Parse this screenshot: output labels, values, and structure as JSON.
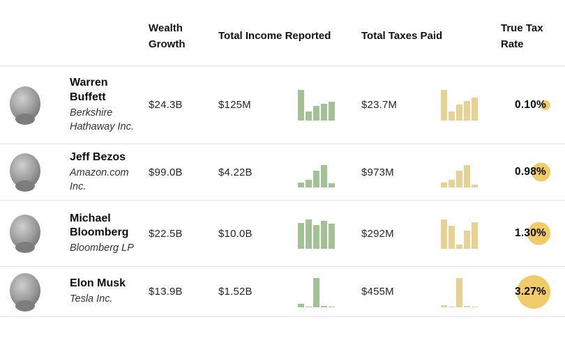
{
  "header": {
    "wealth_growth": "Wealth Growth",
    "total_income_reported": "Total Income Reported",
    "total_taxes_paid": "Total Taxes Paid",
    "true_tax_rate": "True Tax Rate"
  },
  "colors": {
    "income_bar": "#a3c293",
    "tax_bar": "#e5d294",
    "rate_circle": "#f0cb67",
    "divider": "#e3e3e3"
  },
  "rows": [
    {
      "name": "Warren Buffett",
      "company": "Berkshire Hathaway Inc.",
      "wealth_growth": "$24.3B",
      "income_reported": "$125M",
      "income_chart": [
        1.0,
        0.3,
        0.48,
        0.55,
        0.62
      ],
      "taxes_paid": "$23.7M",
      "taxes_chart": [
        1.0,
        0.3,
        0.52,
        0.64,
        0.74
      ],
      "true_tax_rate": "0.10%",
      "rate_circle": 14
    },
    {
      "name": "Jeff Bezos",
      "company": "Amazon.com Inc.",
      "wealth_growth": "$99.0B",
      "income_reported": "$4.22B",
      "income_chart": [
        0.16,
        0.25,
        0.55,
        0.72,
        0.14
      ],
      "taxes_paid": "$973M",
      "taxes_chart": [
        0.16,
        0.25,
        0.55,
        0.72,
        0.08
      ],
      "true_tax_rate": "0.98%",
      "rate_circle": 27
    },
    {
      "name": "Michael Bloomberg",
      "company": "Bloomberg LP",
      "wealth_growth": "$22.5B",
      "income_reported": "$10.0B",
      "income_chart": [
        0.85,
        0.95,
        0.78,
        0.9,
        0.82
      ],
      "taxes_paid": "$292M",
      "taxes_chart": [
        0.95,
        0.76,
        0.14,
        0.59,
        0.86
      ],
      "true_tax_rate": "1.30%",
      "rate_circle": 33
    },
    {
      "name": "Elon Musk",
      "company": "Tesla Inc.",
      "wealth_growth": "$13.9B",
      "income_reported": "$1.52B",
      "income_chart": [
        0.12,
        0.03,
        0.95,
        0.04,
        0.03
      ],
      "taxes_paid": "$455M",
      "taxes_chart": [
        0.06,
        0.03,
        0.95,
        0.04,
        0.02
      ],
      "true_tax_rate": "3.27%",
      "rate_circle": 48
    }
  ],
  "chart_data": {
    "type": "table",
    "columns": [
      "Name",
      "Company",
      "Wealth Growth",
      "Total Income Reported",
      "Income mini bar chart (relative)",
      "Total Taxes Paid",
      "Taxes mini bar chart (relative)",
      "True Tax Rate"
    ],
    "rows": [
      [
        "Warren Buffett",
        "Berkshire Hathaway Inc.",
        "$24.3B",
        "$125M",
        [
          1.0,
          0.3,
          0.48,
          0.55,
          0.62
        ],
        "$23.7M",
        [
          1.0,
          0.3,
          0.52,
          0.64,
          0.74
        ],
        "0.10%"
      ],
      [
        "Jeff Bezos",
        "Amazon.com Inc.",
        "$99.0B",
        "$4.22B",
        [
          0.16,
          0.25,
          0.55,
          0.72,
          0.14
        ],
        "$973M",
        [
          0.16,
          0.25,
          0.55,
          0.72,
          0.08
        ],
        "0.98%"
      ],
      [
        "Michael Bloomberg",
        "Bloomberg LP",
        "$22.5B",
        "$10.0B",
        [
          0.85,
          0.95,
          0.78,
          0.9,
          0.82
        ],
        "$292M",
        [
          0.95,
          0.76,
          0.14,
          0.59,
          0.86
        ],
        "1.30%"
      ],
      [
        "Elon Musk",
        "Tesla Inc.",
        "$13.9B",
        "$1.52B",
        [
          0.12,
          0.03,
          0.95,
          0.04,
          0.03
        ],
        "$455M",
        [
          0.06,
          0.03,
          0.95,
          0.04,
          0.02
        ],
        "3.27%"
      ]
    ],
    "notes": "Mini bar charts are green for income and tan/yellow for taxes; true tax rate has a yellow circle highlight whose size scales with the rate."
  }
}
